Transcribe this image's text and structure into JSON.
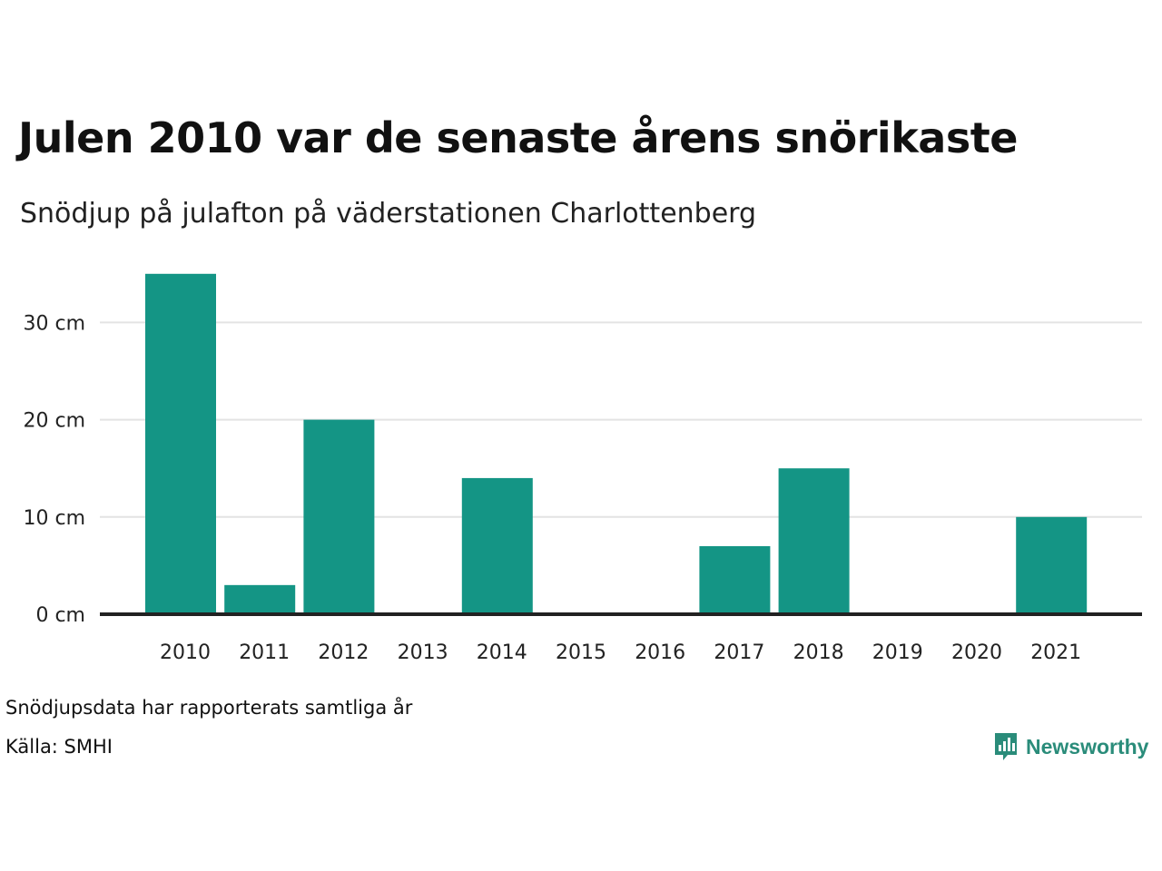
{
  "header": {
    "title": "Julen 2010 var de senaste årens snörikaste",
    "subtitle": "Snödjup på julafton på väderstationen Charlottenberg"
  },
  "footer": {
    "note": "Snödjupsdata har rapporterats samtliga år",
    "source": "Källa: SMHI"
  },
  "brand": {
    "name": "Newsworthy",
    "icon": "newsworthy-logo-icon",
    "color": "#2a8c7a"
  },
  "chart_data": {
    "type": "bar",
    "categories": [
      "2010",
      "2011",
      "2012",
      "2013",
      "2014",
      "2015",
      "2016",
      "2017",
      "2018",
      "2019",
      "2020",
      "2021"
    ],
    "values": [
      35,
      3,
      20,
      0,
      14,
      0,
      0,
      7,
      15,
      0,
      0,
      10
    ],
    "ylim": [
      0,
      35
    ],
    "yticks": [
      0,
      10,
      20,
      30
    ],
    "ytick_labels": [
      "0 cm",
      "10 cm",
      "20 cm",
      "30 cm"
    ],
    "ylabel": "",
    "xlabel": "",
    "grid": true,
    "bar_color": "#149585",
    "grid_color": "#e3e3e3",
    "axis_color": "#222222"
  }
}
